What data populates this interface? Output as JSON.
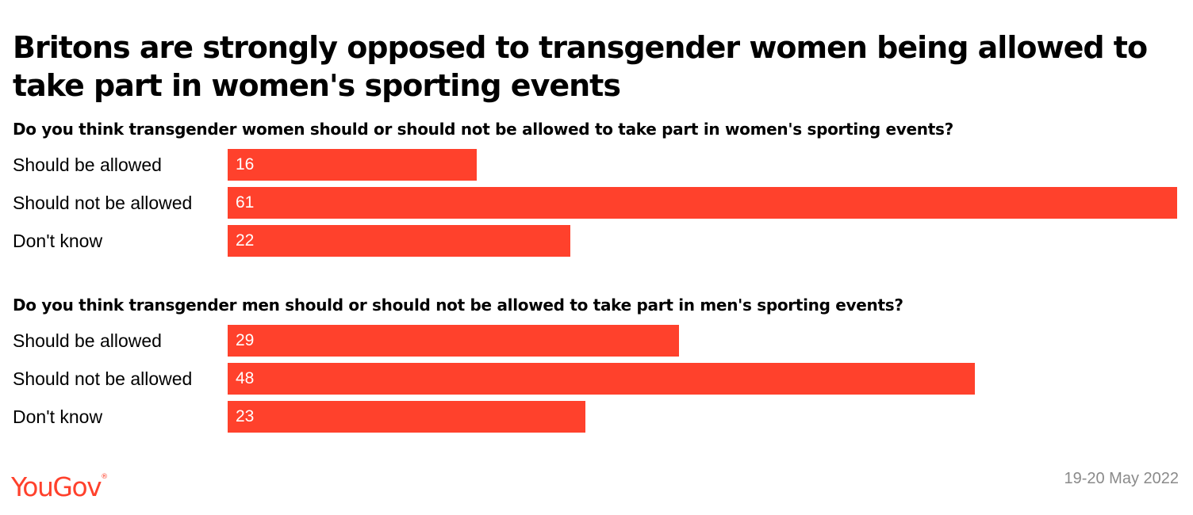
{
  "title": "Britons are strongly opposed to transgender women being allowed to take part in women's sporting events",
  "chart_data": [
    {
      "type": "bar",
      "orientation": "horizontal",
      "title": "Do you think transgender women should or should not be allowed to take part in women's sporting events?",
      "categories": [
        "Should be allowed",
        "Should not be allowed",
        "Don't know"
      ],
      "values": [
        16,
        61,
        22
      ],
      "data_labels": [
        "16",
        "61",
        "22"
      ],
      "color": "#ff412c",
      "xlim": [
        0,
        61
      ],
      "grid": false
    },
    {
      "type": "bar",
      "orientation": "horizontal",
      "title": "Do you think transgender men should or should not be allowed to take part in men's sporting events?",
      "categories": [
        "Should be allowed",
        "Should not be allowed",
        "Don't know"
      ],
      "values": [
        29,
        48,
        23
      ],
      "data_labels": [
        "29",
        "48",
        "23"
      ],
      "color": "#ff412c",
      "xlim": [
        0,
        61
      ],
      "grid": false
    }
  ],
  "brand": {
    "logo_text": "YouGov",
    "logo_mark": "®",
    "color": "#ff412c"
  },
  "date": "19-20 May 2022"
}
